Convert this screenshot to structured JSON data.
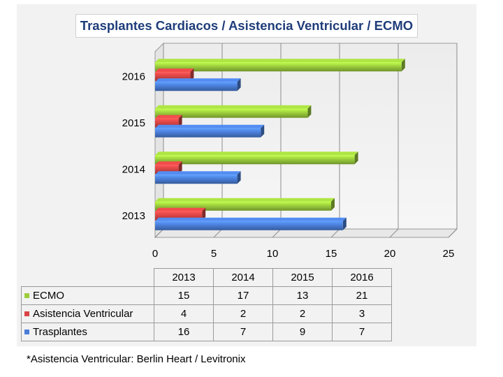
{
  "chart_data": {
    "type": "bar",
    "orientation": "horizontal",
    "title": "Trasplantes Cardiacos / Asistencia Ventricular / ECMO",
    "categories": [
      "2013",
      "2014",
      "2015",
      "2016"
    ],
    "series": [
      {
        "name": "ECMO",
        "values": [
          15,
          17,
          13,
          21
        ],
        "color": "#9bcd3c"
      },
      {
        "name": "Asistencia Ventricular",
        "values": [
          4,
          2,
          2,
          3
        ],
        "color": "#d94444"
      },
      {
        "name": "Trasplantes",
        "values": [
          16,
          7,
          9,
          7
        ],
        "color": "#4a7ed8"
      }
    ],
    "xlim": [
      0,
      25
    ],
    "xticks": [
      "0",
      "5",
      "10",
      "15",
      "20",
      "25"
    ],
    "grid": true,
    "legend": "data table below chart"
  },
  "footnote": "*Asistencia Ventricular: Berlin Heart / Levitronix"
}
